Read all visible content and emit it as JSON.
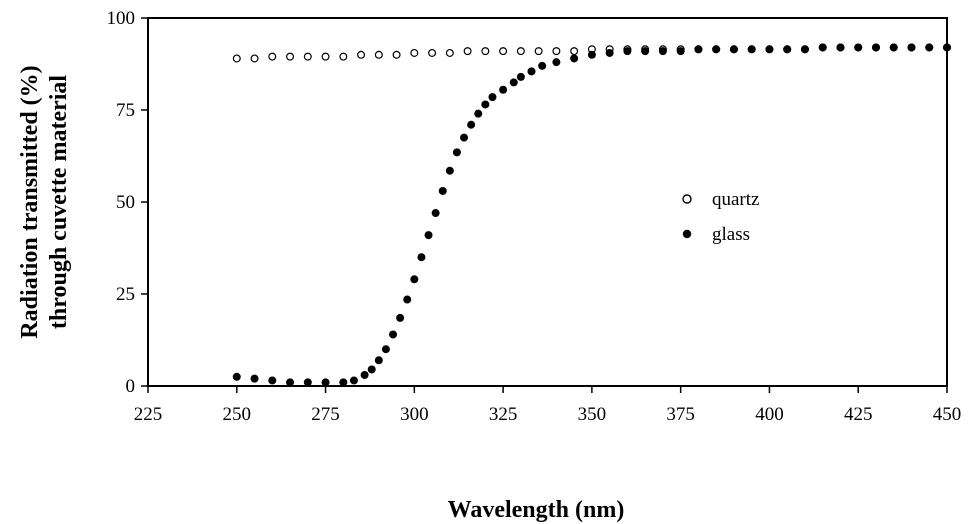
{
  "chart_data": {
    "type": "scatter",
    "title": "",
    "xlabel": "Wavelength (nm)",
    "ylabel_line1": "Radiation transmitted (%)",
    "ylabel_line2": "through cuvette material",
    "xlim": [
      225,
      450
    ],
    "ylim": [
      0,
      100
    ],
    "xticks": [
      225,
      250,
      275,
      300,
      325,
      350,
      375,
      400,
      425,
      450
    ],
    "yticks": [
      0,
      25,
      50,
      75,
      100
    ],
    "legend_position": "center-right",
    "colors": {
      "axis": "#000000",
      "marker": "#000000",
      "background": "#ffffff"
    },
    "series": [
      {
        "name": "quartz",
        "marker": "open-circle",
        "points": [
          [
            250,
            89
          ],
          [
            255,
            89
          ],
          [
            260,
            89.5
          ],
          [
            265,
            89.5
          ],
          [
            270,
            89.5
          ],
          [
            275,
            89.5
          ],
          [
            280,
            89.5
          ],
          [
            285,
            90
          ],
          [
            290,
            90
          ],
          [
            295,
            90
          ],
          [
            300,
            90.5
          ],
          [
            305,
            90.5
          ],
          [
            310,
            90.5
          ],
          [
            315,
            91
          ],
          [
            320,
            91
          ],
          [
            325,
            91
          ],
          [
            330,
            91
          ],
          [
            335,
            91
          ],
          [
            340,
            91
          ],
          [
            345,
            91
          ],
          [
            350,
            91.5
          ],
          [
            355,
            91.5
          ],
          [
            360,
            91.5
          ],
          [
            365,
            91.5
          ],
          [
            370,
            91.5
          ],
          [
            375,
            91.5
          ],
          [
            380,
            91.5
          ],
          [
            385,
            91.5
          ],
          [
            390,
            91.5
          ],
          [
            395,
            91.5
          ],
          [
            400,
            91.5
          ],
          [
            405,
            91.5
          ],
          [
            410,
            91.5
          ],
          [
            415,
            92
          ],
          [
            420,
            92
          ],
          [
            425,
            92
          ],
          [
            430,
            92
          ],
          [
            435,
            92
          ],
          [
            440,
            92
          ],
          [
            445,
            92
          ],
          [
            450,
            92
          ]
        ]
      },
      {
        "name": "glass",
        "marker": "filled-circle",
        "points": [
          [
            250,
            2.5
          ],
          [
            255,
            2
          ],
          [
            260,
            1.5
          ],
          [
            265,
            1
          ],
          [
            270,
            1
          ],
          [
            275,
            1
          ],
          [
            280,
            1
          ],
          [
            283,
            1.5
          ],
          [
            286,
            3
          ],
          [
            288,
            4.5
          ],
          [
            290,
            7
          ],
          [
            292,
            10
          ],
          [
            294,
            14
          ],
          [
            296,
            18.5
          ],
          [
            298,
            23.5
          ],
          [
            300,
            29
          ],
          [
            302,
            35
          ],
          [
            304,
            41
          ],
          [
            306,
            47
          ],
          [
            308,
            53
          ],
          [
            310,
            58.5
          ],
          [
            312,
            63.5
          ],
          [
            314,
            67.5
          ],
          [
            316,
            71
          ],
          [
            318,
            74
          ],
          [
            320,
            76.5
          ],
          [
            322,
            78.5
          ],
          [
            325,
            80.5
          ],
          [
            328,
            82.5
          ],
          [
            330,
            84
          ],
          [
            333,
            85.5
          ],
          [
            336,
            87
          ],
          [
            340,
            88
          ],
          [
            345,
            89
          ],
          [
            350,
            90
          ],
          [
            355,
            90.5
          ],
          [
            360,
            91
          ],
          [
            365,
            91
          ],
          [
            370,
            91
          ],
          [
            375,
            91
          ],
          [
            380,
            91.5
          ],
          [
            385,
            91.5
          ],
          [
            390,
            91.5
          ],
          [
            395,
            91.5
          ],
          [
            400,
            91.5
          ],
          [
            405,
            91.5
          ],
          [
            410,
            91.5
          ],
          [
            415,
            92
          ],
          [
            420,
            92
          ],
          [
            425,
            92
          ],
          [
            430,
            92
          ],
          [
            435,
            92
          ],
          [
            440,
            92
          ],
          [
            445,
            92
          ],
          [
            450,
            92
          ]
        ]
      }
    ]
  }
}
